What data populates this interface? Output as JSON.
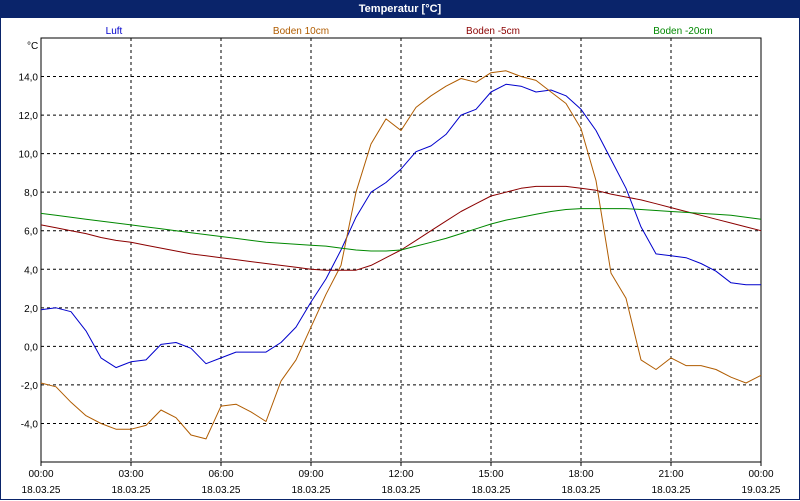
{
  "window": {
    "title": "Temperatur [°C]"
  },
  "chart_data": {
    "type": "line",
    "title": "Temperatur [°C]",
    "ylabel": "°C",
    "xlabel": "",
    "ylim": [
      -6,
      16
    ],
    "xlim": [
      0,
      24
    ],
    "grid": true,
    "legend_placement": "top",
    "y_ticks": [
      {
        "value": 14,
        "label": "14,0"
      },
      {
        "value": 12,
        "label": "12,0"
      },
      {
        "value": 10,
        "label": "10,0"
      },
      {
        "value": 8,
        "label": "8,0"
      },
      {
        "value": 6,
        "label": "6,0"
      },
      {
        "value": 4,
        "label": "4,0"
      },
      {
        "value": 2,
        "label": "2,0"
      },
      {
        "value": 0,
        "label": "0,0"
      },
      {
        "value": -2,
        "label": "-2,0"
      },
      {
        "value": -4,
        "label": "-4,0"
      }
    ],
    "x_ticks": [
      {
        "value": 0,
        "time": "00:00",
        "date": "18.03.25"
      },
      {
        "value": 3,
        "time": "03:00",
        "date": "18.03.25"
      },
      {
        "value": 6,
        "time": "06:00",
        "date": "18.03.25"
      },
      {
        "value": 9,
        "time": "09:00",
        "date": "18.03.25"
      },
      {
        "value": 12,
        "time": "12:00",
        "date": "18.03.25"
      },
      {
        "value": 15,
        "time": "15:00",
        "date": "18.03.25"
      },
      {
        "value": 18,
        "time": "18:00",
        "date": "18.03.25"
      },
      {
        "value": 21,
        "time": "21:00",
        "date": "18.03.25"
      },
      {
        "value": 24,
        "time": "00:00",
        "date": "19.03.25"
      }
    ],
    "series": [
      {
        "name": "Luft",
        "color": "#0000cc",
        "x": [
          0,
          0.5,
          1,
          1.5,
          2,
          2.5,
          3,
          3.5,
          4,
          4.5,
          5,
          5.5,
          6,
          6.5,
          7,
          7.5,
          8,
          8.5,
          9,
          9.5,
          10,
          10.5,
          11,
          11.5,
          12,
          12.5,
          13,
          13.5,
          14,
          14.5,
          15,
          15.5,
          16,
          16.5,
          17,
          17.5,
          18,
          18.5,
          19,
          19.5,
          20,
          20.5,
          21,
          21.5,
          22,
          22.5,
          23,
          23.5,
          24
        ],
        "values": [
          1.9,
          2.0,
          1.8,
          0.8,
          -0.6,
          -1.1,
          -0.8,
          -0.7,
          0.1,
          0.2,
          -0.1,
          -0.9,
          -0.6,
          -0.3,
          -0.3,
          -0.3,
          0.2,
          1.0,
          2.3,
          3.5,
          5.0,
          6.7,
          8.0,
          8.5,
          9.2,
          10.1,
          10.4,
          11.0,
          12.0,
          12.3,
          13.2,
          13.6,
          13.5,
          13.2,
          13.3,
          13.0,
          12.3,
          11.2,
          9.7,
          8.2,
          6.2,
          4.8,
          4.7,
          4.6,
          4.3,
          3.9,
          3.3,
          3.2,
          3.2
        ]
      },
      {
        "name": "Boden 10cm",
        "color": "#b05c00",
        "x": [
          0,
          0.5,
          1,
          1.5,
          2,
          2.5,
          3,
          3.5,
          4,
          4.5,
          5,
          5.5,
          6,
          6.5,
          7,
          7.5,
          8,
          8.5,
          9,
          9.5,
          10,
          10.5,
          11,
          11.5,
          12,
          12.5,
          13,
          13.5,
          14,
          14.5,
          15,
          15.5,
          16,
          16.5,
          17,
          17.5,
          18,
          18.5,
          19,
          19.5,
          20,
          20.5,
          21,
          21.5,
          22,
          22.5,
          23,
          23.5,
          24
        ],
        "values": [
          -1.9,
          -2.1,
          -2.9,
          -3.6,
          -4.0,
          -4.3,
          -4.3,
          -4.1,
          -3.3,
          -3.7,
          -4.6,
          -4.8,
          -3.1,
          -3.0,
          -3.4,
          -3.9,
          -1.8,
          -0.7,
          1.0,
          2.7,
          4.2,
          8.0,
          10.5,
          11.8,
          11.2,
          12.4,
          13.0,
          13.5,
          13.9,
          13.7,
          14.2,
          14.3,
          14.0,
          13.8,
          13.2,
          12.6,
          11.3,
          8.6,
          3.8,
          2.5,
          -0.7,
          -1.2,
          -0.6,
          -1.0,
          -1.0,
          -1.2,
          -1.6,
          -1.9,
          -1.5
        ]
      },
      {
        "name": "Boden -5cm",
        "color": "#8b0000",
        "x": [
          0,
          0.5,
          1,
          1.5,
          2,
          2.5,
          3,
          3.5,
          4,
          4.5,
          5,
          5.5,
          6,
          6.5,
          7,
          7.5,
          8,
          8.5,
          9,
          9.5,
          10,
          10.5,
          11,
          11.5,
          12,
          12.5,
          13,
          13.5,
          14,
          14.5,
          15,
          15.5,
          16,
          16.5,
          17,
          17.5,
          18,
          18.5,
          19,
          19.5,
          20,
          20.5,
          21,
          21.5,
          22,
          22.5,
          23,
          23.5,
          24
        ],
        "values": [
          6.3,
          6.15,
          6.0,
          5.85,
          5.65,
          5.5,
          5.4,
          5.25,
          5.1,
          4.95,
          4.8,
          4.7,
          4.6,
          4.5,
          4.4,
          4.3,
          4.2,
          4.1,
          4.0,
          3.95,
          3.95,
          3.95,
          4.2,
          4.6,
          5.0,
          5.5,
          6.0,
          6.5,
          7.0,
          7.4,
          7.8,
          8.0,
          8.2,
          8.3,
          8.3,
          8.3,
          8.2,
          8.1,
          7.9,
          7.75,
          7.6,
          7.4,
          7.2,
          7.0,
          6.8,
          6.6,
          6.4,
          6.2,
          6.0
        ]
      },
      {
        "name": "Boden -20cm",
        "color": "#008800",
        "x": [
          0,
          0.5,
          1,
          1.5,
          2,
          2.5,
          3,
          3.5,
          4,
          4.5,
          5,
          5.5,
          6,
          6.5,
          7,
          7.5,
          8,
          8.5,
          9,
          9.5,
          10,
          10.5,
          11,
          11.5,
          12,
          12.5,
          13,
          13.5,
          14,
          14.5,
          15,
          15.5,
          16,
          16.5,
          17,
          17.5,
          18,
          18.5,
          19,
          19.5,
          20,
          20.5,
          21,
          21.5,
          22,
          22.5,
          23,
          23.5,
          24
        ],
        "values": [
          6.9,
          6.8,
          6.7,
          6.6,
          6.5,
          6.4,
          6.3,
          6.2,
          6.1,
          6.0,
          5.9,
          5.8,
          5.7,
          5.6,
          5.5,
          5.4,
          5.35,
          5.3,
          5.25,
          5.2,
          5.1,
          5.0,
          4.95,
          4.95,
          5.0,
          5.2,
          5.4,
          5.6,
          5.85,
          6.1,
          6.35,
          6.55,
          6.7,
          6.85,
          7.0,
          7.1,
          7.15,
          7.15,
          7.15,
          7.15,
          7.1,
          7.05,
          7.0,
          6.95,
          6.9,
          6.85,
          6.8,
          6.7,
          6.6
        ]
      }
    ]
  }
}
